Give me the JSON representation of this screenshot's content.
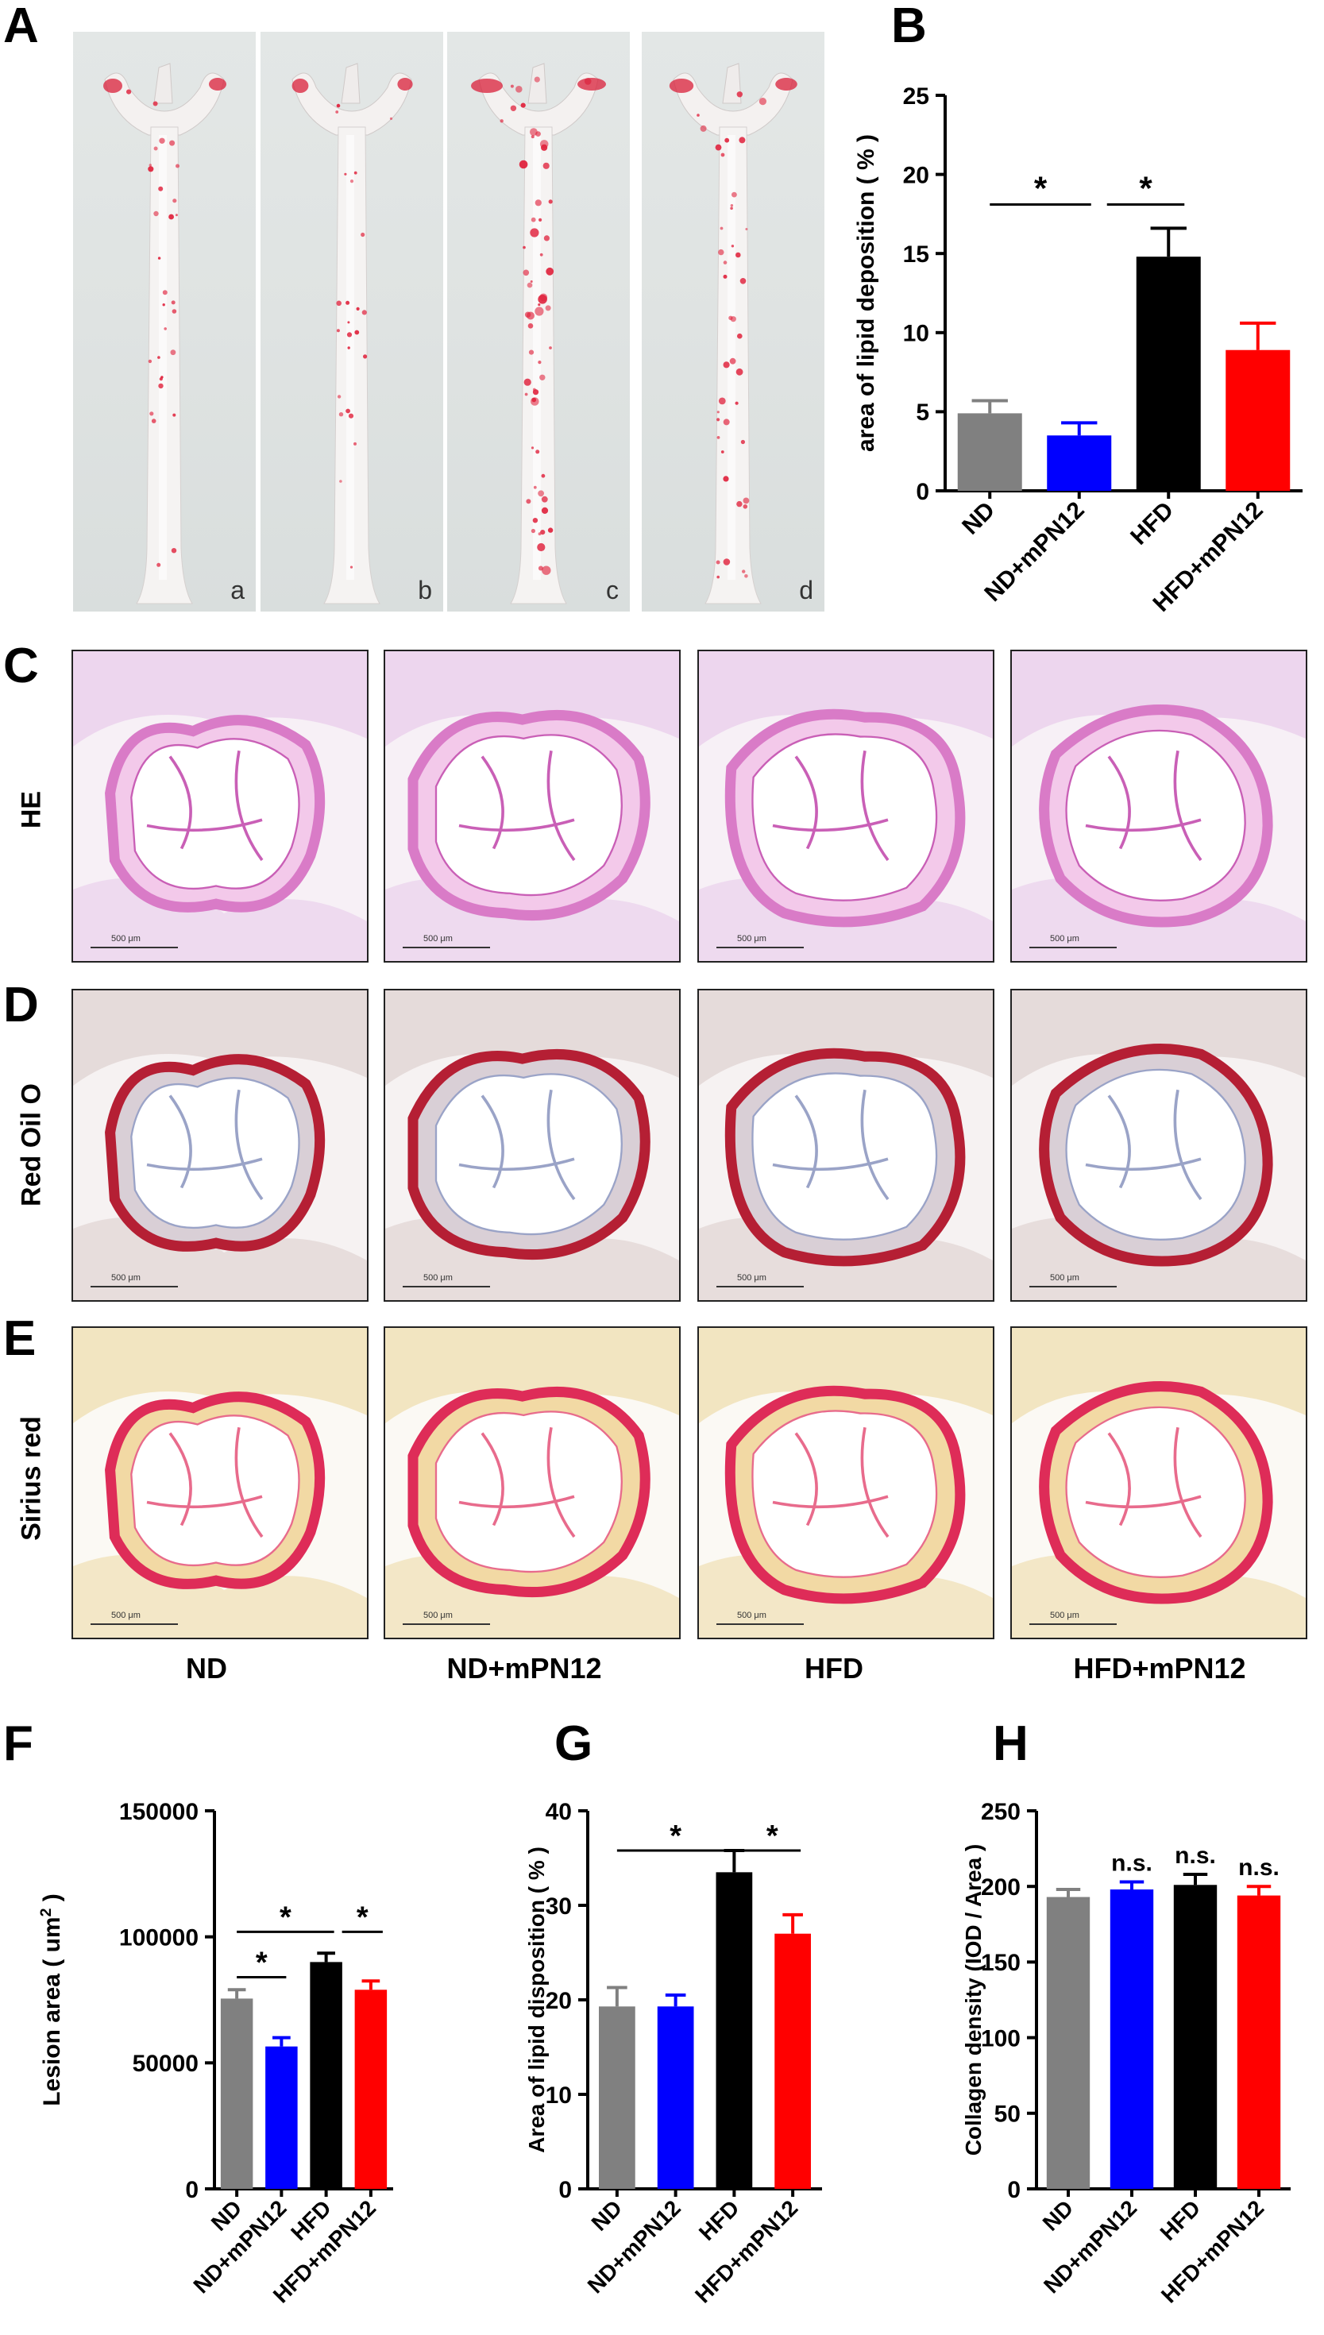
{
  "panels": {
    "A": "A",
    "B": "B",
    "C": "C",
    "D": "D",
    "E": "E",
    "F": "F",
    "G": "G",
    "H": "H"
  },
  "photo_letters": [
    "a",
    "b",
    "c",
    "d"
  ],
  "row_labels": {
    "he": "HE",
    "oil": "Red Oil O",
    "sirius": "Sirius red"
  },
  "column_labels": [
    "ND",
    "ND+mPN12",
    "HFD",
    "HFD+mPN12"
  ],
  "scale_text": "500 μm",
  "colors": {
    "ND": "#808080",
    "ND+mPN12": "#0000ff",
    "HFD": "#000000",
    "HFD+mPN12": "#ff0000"
  },
  "chart_data": [
    {
      "id": "B",
      "type": "bar",
      "categories": [
        "ND",
        "ND+mPN12",
        "HFD",
        "HFD+mPN12"
      ],
      "values": [
        4.9,
        3.5,
        14.8,
        8.9
      ],
      "errors": [
        0.8,
        0.8,
        1.8,
        1.7
      ],
      "ylabel": "area of lipid deposition ( % )",
      "ylim": [
        0,
        25
      ],
      "yticks": [
        "0",
        "5",
        "10",
        "15",
        "20",
        "25"
      ],
      "significance": [
        "*",
        "*"
      ]
    },
    {
      "id": "F",
      "type": "bar",
      "categories": [
        "ND",
        "ND+mPN12",
        "HFD",
        "HFD+mPN12"
      ],
      "values": [
        75500,
        56500,
        90000,
        79000
      ],
      "errors": [
        3500,
        3500,
        3500,
        3500
      ],
      "ylabel": "Lesion area ( um",
      "ylabel_sup": "2",
      "ylabel_end": " )",
      "ylim": [
        0,
        150000
      ],
      "yticks": [
        "0",
        "50000",
        "100000",
        "150000"
      ],
      "significance": [
        "*",
        "*",
        "*"
      ]
    },
    {
      "id": "G",
      "type": "bar",
      "categories": [
        "ND",
        "ND+mPN12",
        "HFD",
        "HFD+mPN12"
      ],
      "values": [
        19.3,
        19.3,
        33.5,
        27.0
      ],
      "errors": [
        2.0,
        1.2,
        2.3,
        2.0
      ],
      "ylabel": "Area of lipid disposition ( % )",
      "ylim": [
        0,
        40
      ],
      "yticks": [
        "0",
        "10",
        "20",
        "30",
        "40"
      ],
      "significance": [
        "*",
        "*"
      ]
    },
    {
      "id": "H",
      "type": "bar",
      "categories": [
        "ND",
        "ND+mPN12",
        "HFD",
        "HFD+mPN12"
      ],
      "values": [
        193,
        198,
        201,
        194
      ],
      "errors": [
        5,
        5,
        7,
        6
      ],
      "ylabel": "Collagen density  (IOD / Area )",
      "ylim": [
        0,
        250
      ],
      "yticks": [
        "0",
        "50",
        "100",
        "150",
        "200",
        "250"
      ],
      "significance": [
        "n.s.",
        "n.s.",
        "n.s."
      ]
    }
  ]
}
